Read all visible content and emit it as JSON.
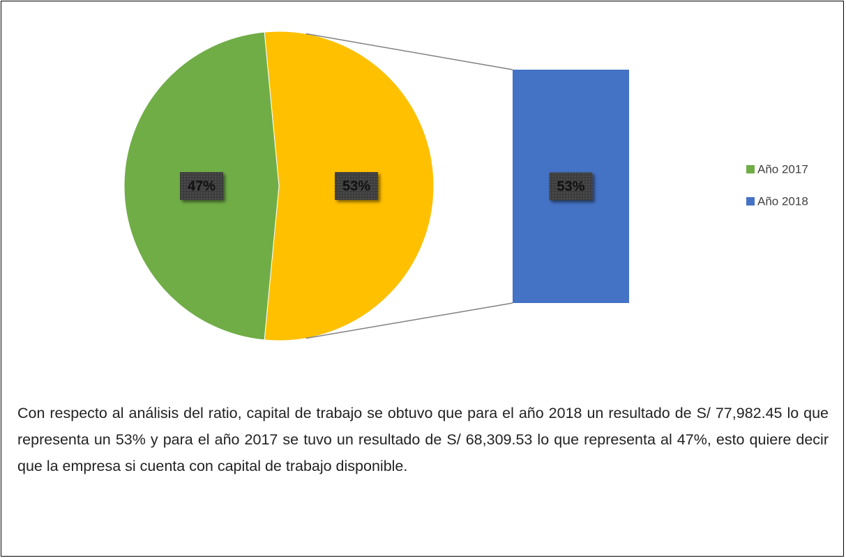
{
  "chart_data": {
    "type": "pie",
    "categories": [
      "Año 2017",
      "Año 2018"
    ],
    "values": [
      47,
      53
    ],
    "value_labels": [
      "47%",
      "53%"
    ],
    "colors": [
      "#70ad47",
      "#4472c4"
    ],
    "other": {
      "value": 53,
      "label": "53%",
      "color": "#ffc000"
    },
    "legend": "right"
  },
  "paragraph": "Con respecto al análisis del ratio, capital de trabajo se obtuvo que para el año 2018 un resultado de S/ 77,982.45 lo que representa un 53% y para el año 2017 se tuvo un resultado de S/ 68,309.53 lo que representa al 47%, esto quiere decir que la empresa si cuenta con capital de trabajo disponible."
}
